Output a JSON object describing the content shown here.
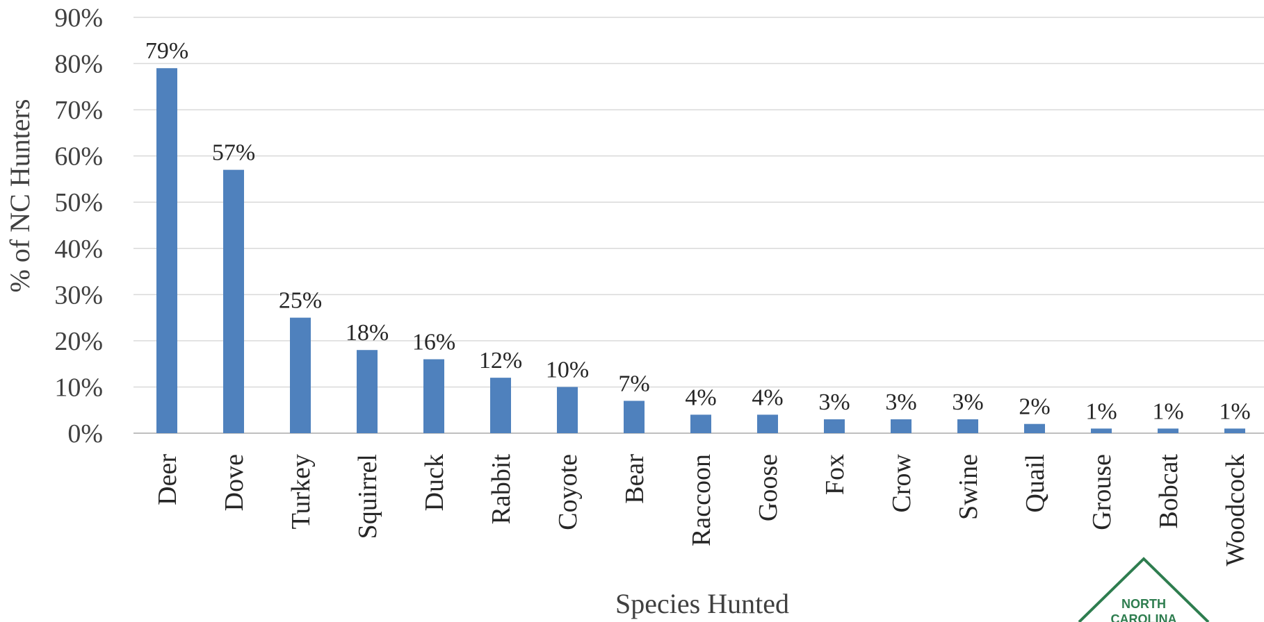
{
  "chart_data": {
    "type": "bar",
    "categories": [
      "Deer",
      "Dove",
      "Turkey",
      "Squirrel",
      "Duck",
      "Rabbit",
      "Coyote",
      "Bear",
      "Raccoon",
      "Goose",
      "Fox",
      "Crow",
      "Swine",
      "Quail",
      "Grouse",
      "Bobcat",
      "Woodcock"
    ],
    "values": [
      79,
      57,
      25,
      18,
      16,
      12,
      10,
      7,
      4,
      4,
      3,
      3,
      3,
      2,
      1,
      1,
      1
    ],
    "data_labels": [
      "79%",
      "57%",
      "25%",
      "18%",
      "16%",
      "12%",
      "10%",
      "7%",
      "4%",
      "4%",
      "3%",
      "3%",
      "3%",
      "2%",
      "1%",
      "1%",
      "1%"
    ],
    "title": "",
    "xlabel": "Species Hunted",
    "ylabel": "% of NC Hunters",
    "ylim": [
      0,
      90
    ],
    "yticks": [
      "0%",
      "10%",
      "20%",
      "30%",
      "40%",
      "50%",
      "60%",
      "70%",
      "80%",
      "90%"
    ],
    "grid": true,
    "legend": "none",
    "bar_color": "#4f81bd"
  },
  "logo": {
    "line1": "NORTH",
    "line2": "CAROLINA",
    "color": "#2e7d4f"
  }
}
